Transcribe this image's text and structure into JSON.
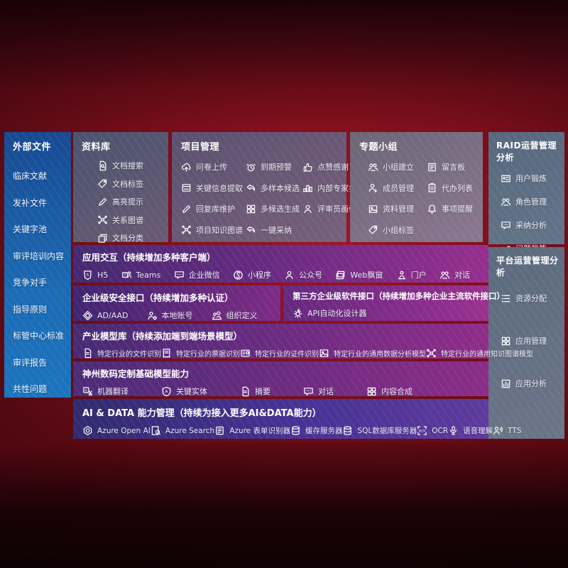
{
  "colors": {
    "background_red": "#6e0d18",
    "sidebar_blue": "#1b6ab4",
    "panel_gray": "#5a5f75",
    "panel_bluegray": "#5d6f84",
    "band_indigo": "#452972",
    "band_magenta": "#962e8d",
    "band_ai_blue": "#322a6e",
    "text": "#ffffff"
  },
  "sidebar": {
    "title": "外部文件",
    "items": [
      "临床文献",
      "发补文件",
      "关键字池",
      "审评培训内容",
      "竞争对手",
      "指导原则",
      "标管中心标准",
      "审评报告",
      "共性问题"
    ]
  },
  "panels": {
    "repository": {
      "title": "资料库",
      "items": [
        {
          "icon": "doc-search-icon",
          "label": "文档搜索"
        },
        {
          "icon": "doc-tag-icon",
          "label": "文档标签"
        },
        {
          "icon": "highlight-pen-icon",
          "label": "高亮提示"
        },
        {
          "icon": "relation-graph-icon",
          "label": "关系图谱"
        },
        {
          "icon": "doc-category-icon",
          "label": "文档分类"
        }
      ]
    },
    "project": {
      "title": "项目管理",
      "items": [
        {
          "icon": "cloud-upload-icon",
          "label": "问卷上传"
        },
        {
          "icon": "alarm-icon",
          "label": "到期预警"
        },
        {
          "icon": "thumbs-up-icon",
          "label": "点赞感谢"
        },
        {
          "icon": "info-extract-icon",
          "label": "关键信息提取"
        },
        {
          "icon": "sample-reply-icon",
          "label": "多样本候选"
        },
        {
          "icon": "expert-ranking-icon",
          "label": "内部专家排名"
        },
        {
          "icon": "reply-maintain-icon",
          "label": "回复库维护"
        },
        {
          "icon": "candidate-generate-icon",
          "label": "多候选生成"
        },
        {
          "icon": "reviewer-profile-icon",
          "label": "评审员画像"
        },
        {
          "icon": "knowledge-graph-icon",
          "label": "项目知识图谱"
        },
        {
          "icon": "one-click-adopt-icon",
          "label": "一键采纳"
        }
      ]
    },
    "group": {
      "title": "专题小组",
      "items": [
        {
          "icon": "group-create-icon",
          "label": "小组建立"
        },
        {
          "icon": "message-board-icon",
          "label": "留言板"
        },
        {
          "icon": "member-manage-icon",
          "label": "成员管理"
        },
        {
          "icon": "todo-list-icon",
          "label": "代办列表"
        },
        {
          "icon": "material-manage-icon",
          "label": "资料管理"
        },
        {
          "icon": "reminder-bell-icon",
          "label": "事项提醒"
        },
        {
          "icon": "group-tag-icon",
          "label": "小组标签"
        }
      ]
    },
    "raid": {
      "title": "RAID运营管理分析",
      "items": [
        {
          "icon": "user-card-icon",
          "label": "用户锻炼"
        },
        {
          "icon": "role-manage-icon",
          "label": "角色管理"
        },
        {
          "icon": "adoption-analysis-icon",
          "label": "采纳分析"
        },
        {
          "icon": "issue-trend-icon",
          "label": "问题趋势"
        }
      ]
    },
    "platform": {
      "title": "平台运营管理分析",
      "items": [
        {
          "icon": "resource-allocation-icon",
          "label": "资源分配"
        },
        {
          "icon": "app-manage-icon",
          "label": "应用管理"
        },
        {
          "icon": "app-analysis-icon",
          "label": "应用分析"
        }
      ]
    }
  },
  "bands": [
    {
      "title": "应用交互（持续增加多种客户端）",
      "items": [
        {
          "icon": "h5-icon",
          "label": "H5"
        },
        {
          "icon": "teams-icon",
          "label": "Teams"
        },
        {
          "icon": "wecom-icon",
          "label": "企业微信"
        },
        {
          "icon": "miniprogram-icon",
          "label": "小程序"
        },
        {
          "icon": "official-account-icon",
          "label": "公众号"
        },
        {
          "icon": "web-popup-icon",
          "label": "Web飘窗"
        },
        {
          "icon": "portal-icon",
          "label": "门户"
        },
        {
          "icon": "dialog-icon",
          "label": "对话"
        }
      ]
    },
    {
      "title": "企业级安全接口（持续增加多种认证）",
      "items": [
        {
          "icon": "ad-aad-icon",
          "label": "AD/AAD"
        },
        {
          "icon": "local-account-icon",
          "label": "本地账号"
        },
        {
          "icon": "org-define-icon",
          "label": "组织定义"
        }
      ]
    },
    {
      "title": "第三方企业级软件接口（持续增加多种企业主流软件接口）",
      "items": [
        {
          "icon": "api-designer-icon",
          "label": "API自动化设计器"
        }
      ]
    },
    {
      "title": "产业模型库（持续添加端到端场景模型）",
      "items": [
        {
          "icon": "file-recognition-icon",
          "label": "特定行业的文件识别"
        },
        {
          "icon": "invoice-recognition-icon",
          "label": "特定行业的票据识别"
        },
        {
          "icon": "certificate-recognition-icon",
          "label": "特定行业的证件识别"
        },
        {
          "icon": "data-analysis-model-icon",
          "label": "特定行业的通用数据分析模型"
        },
        {
          "icon": "knowledge-graph-model-icon",
          "label": "特定行业的通用知识图谱模型"
        }
      ]
    },
    {
      "title": "神州数码定制基础模型能力",
      "items": [
        {
          "icon": "translate-icon",
          "label": "机器翻译"
        },
        {
          "icon": "entity-icon",
          "label": "关键实体"
        },
        {
          "icon": "summary-icon",
          "label": "摘要"
        },
        {
          "icon": "chat-icon",
          "label": "对话"
        },
        {
          "icon": "content-compose-icon",
          "label": "内容合成"
        }
      ]
    },
    {
      "title": "AI & DATA 能力管理（持续为接入更多AI&DATA能力）",
      "items": [
        {
          "icon": "openai-icon",
          "label": "Azure Open AI"
        },
        {
          "icon": "azure-search-icon",
          "label": "Azure Search"
        },
        {
          "icon": "form-recognizer-icon",
          "label": "Azure 表单识别器"
        },
        {
          "icon": "cache-server-icon",
          "label": "缓存服务器"
        },
        {
          "icon": "sql-server-icon",
          "label": "SQL数据库服务器"
        },
        {
          "icon": "ocr-icon",
          "label": "OCR"
        },
        {
          "icon": "speech-icon",
          "label": "语音理解"
        },
        {
          "icon": "tts-icon",
          "label": "TTS"
        }
      ]
    }
  ]
}
